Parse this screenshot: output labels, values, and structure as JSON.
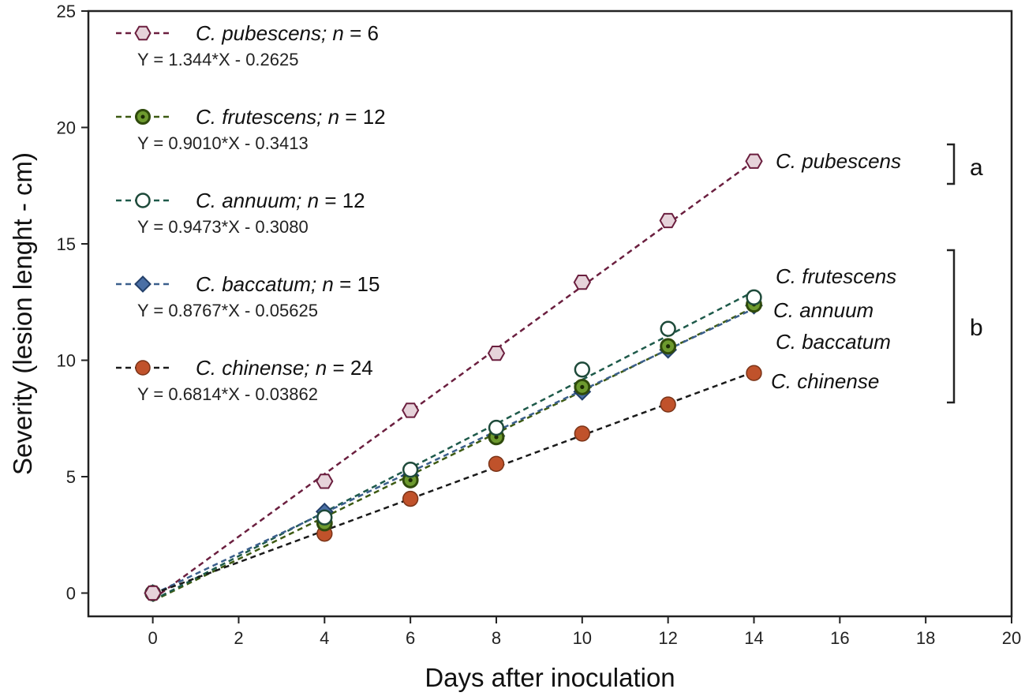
{
  "chart_data": {
    "type": "line",
    "xlabel": "Days after inoculation",
    "ylabel": "Severity (lesion lenght - cm)",
    "xlim": [
      -1.5,
      20
    ],
    "ylim": [
      -1,
      25
    ],
    "xticks": [
      0,
      2,
      4,
      6,
      8,
      10,
      12,
      14,
      16,
      18,
      20
    ],
    "yticks": [
      0,
      5,
      10,
      15,
      20,
      25
    ],
    "x": [
      0,
      4,
      6,
      8,
      10,
      12,
      14
    ],
    "legend_position": "top-left",
    "series": [
      {
        "key": "pubescens",
        "name": "C. pubescens",
        "n_label": "n",
        "n_value": "= 6",
        "equation": "Y = 1.344*X - 0.2625",
        "end_label": "C. pubescens",
        "values": [
          0,
          4.8,
          7.85,
          10.3,
          13.35,
          16.0,
          18.55
        ],
        "fit": [
          1.344,
          -0.2625
        ],
        "marker": "hexagon",
        "line_color": "#6b1f3f",
        "marker_fill": "#e6d3da",
        "marker_edge": "#6b1f3f"
      },
      {
        "key": "frutescens",
        "name": "C. frutescens",
        "n_label": "n",
        "n_value": "= 12",
        "equation": "Y = 0.9010*X - 0.3413",
        "end_label": "C. frutescens",
        "values": [
          0,
          3.0,
          4.85,
          6.7,
          8.85,
          10.6,
          12.4
        ],
        "fit": [
          0.901,
          -0.3413
        ],
        "marker": "dotted-circle",
        "line_color": "#3d5a12",
        "marker_fill": "#6d9a2e",
        "marker_edge": "#2f4a0c"
      },
      {
        "key": "annuum",
        "name": "C. annuum",
        "n_label": "n",
        "n_value": "= 12",
        "equation": "Y = 0.9473*X - 0.3080",
        "end_label": "C. annuum",
        "values": [
          0,
          3.25,
          5.3,
          7.1,
          9.6,
          11.35,
          12.7
        ],
        "fit": [
          0.9473,
          -0.308
        ],
        "marker": "open-circle",
        "line_color": "#1e5a4a",
        "marker_fill": "#ffffff",
        "marker_edge": "#1e4a3a"
      },
      {
        "key": "baccatum",
        "name": "C. baccatum",
        "n_label": "n",
        "n_value": "= 15",
        "equation": "Y = 0.8767*X - 0.05625",
        "end_label": "C. baccatum",
        "values": [
          0,
          3.5,
          5.05,
          6.75,
          8.65,
          10.45,
          12.35
        ],
        "fit": [
          0.8767,
          -0.05625
        ],
        "marker": "diamond",
        "line_color": "#3b5f8c",
        "marker_fill": "#4a6fa5",
        "marker_edge": "#23406a"
      },
      {
        "key": "chinense",
        "name": "C. chinense",
        "n_label": "n",
        "n_value": "= 24",
        "equation": "Y = 0.6814*X - 0.03862",
        "end_label": "C. chinense",
        "values": [
          0,
          2.55,
          4.05,
          5.55,
          6.85,
          8.1,
          9.45
        ],
        "fit": [
          0.6814,
          -0.03862
        ],
        "marker": "circle",
        "line_color": "#1a1a1a",
        "marker_fill": "#c0522b",
        "marker_edge": "#7a3418"
      }
    ],
    "groups": [
      {
        "letter": "a",
        "members": [
          "C. pubescens"
        ]
      },
      {
        "letter": "b",
        "members": [
          "C. frutescens",
          "C. annuum",
          "C. baccatum",
          "C. chinense"
        ]
      }
    ]
  }
}
